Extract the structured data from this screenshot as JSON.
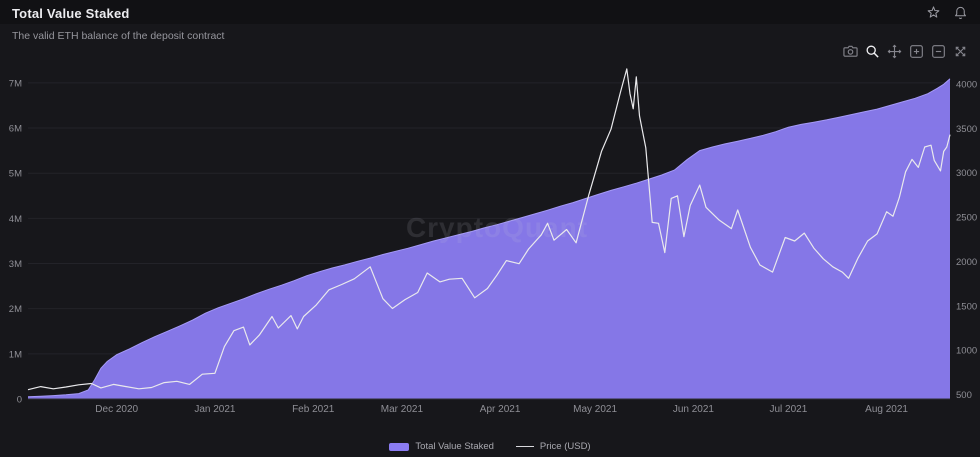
{
  "header": {
    "title": "Total Value Staked",
    "subtitle": "The valid ETH balance of the deposit contract"
  },
  "header_icons": [
    "star-icon",
    "bell-icon"
  ],
  "modebar": {
    "icons": [
      "camera-icon",
      "zoom-icon",
      "pan-icon",
      "zoom-in-icon",
      "zoom-out-icon",
      "autoscale-icon"
    ],
    "active": "zoom-icon"
  },
  "watermark": "CryptoQuant",
  "colors": {
    "background": "#17171b",
    "topbar": "#111114",
    "area": "#8b7cf2",
    "price_line": "#e9e9ec",
    "grid": "#232329",
    "tick_text": "#8f8f96",
    "title_text": "#ececf0",
    "subtitle_text": "#96969d"
  },
  "chart_data": {
    "type": "area",
    "title": "Total Value Staked",
    "subtitle": "The valid ETH balance of the deposit contract",
    "grid": "horizontal",
    "legend_position": "bottom-center",
    "x_range": [
      "2020-11-03",
      "2021-08-21"
    ],
    "x_ticks": [
      {
        "label": "Dec 2020",
        "date": "2020-12-01"
      },
      {
        "label": "Jan 2021",
        "date": "2021-01-01"
      },
      {
        "label": "Feb 2021",
        "date": "2021-02-01"
      },
      {
        "label": "Mar 2021",
        "date": "2021-03-01"
      },
      {
        "label": "Apr 2021",
        "date": "2021-04-01"
      },
      {
        "label": "May 2021",
        "date": "2021-05-01"
      },
      {
        "label": "Jun 2021",
        "date": "2021-06-01"
      },
      {
        "label": "Jul 2021",
        "date": "2021-07-01"
      },
      {
        "label": "Aug 2021",
        "date": "2021-08-01"
      }
    ],
    "y_left": {
      "name": "Total Value Staked (ETH)",
      "range": [
        0,
        7330000
      ],
      "tick_values": [
        0,
        1000000,
        2000000,
        3000000,
        4000000,
        5000000,
        6000000,
        7000000
      ],
      "tick_labels": [
        "0",
        "1M",
        "2M",
        "3M",
        "4M",
        "5M",
        "6M",
        "7M"
      ]
    },
    "y_right": {
      "name": "Price (USD)",
      "range": [
        450,
        4180
      ],
      "tick_values": [
        500,
        1000,
        1500,
        2000,
        2500,
        3000,
        3500,
        4000
      ],
      "tick_labels": [
        "500",
        "1000",
        "1500",
        "2000",
        "2500",
        "3000",
        "3500",
        "4000"
      ]
    },
    "series": [
      {
        "name": "Total Value Staked",
        "type": "area",
        "axis": "left",
        "color": "#8b7cf2",
        "points": [
          [
            "2020-11-03",
            48000
          ],
          [
            "2020-11-07",
            60000
          ],
          [
            "2020-11-11",
            75000
          ],
          [
            "2020-11-15",
            92000
          ],
          [
            "2020-11-19",
            120000
          ],
          [
            "2020-11-22",
            200000
          ],
          [
            "2020-11-24",
            420000
          ],
          [
            "2020-11-26",
            680000
          ],
          [
            "2020-11-28",
            830000
          ],
          [
            "2020-12-01",
            980000
          ],
          [
            "2020-12-05",
            1110000
          ],
          [
            "2020-12-09",
            1250000
          ],
          [
            "2020-12-13",
            1380000
          ],
          [
            "2020-12-17",
            1500000
          ],
          [
            "2020-12-21",
            1620000
          ],
          [
            "2020-12-25",
            1750000
          ],
          [
            "2020-12-29",
            1900000
          ],
          [
            "2021-01-02",
            2020000
          ],
          [
            "2021-01-06",
            2120000
          ],
          [
            "2021-01-10",
            2220000
          ],
          [
            "2021-01-14",
            2330000
          ],
          [
            "2021-01-18",
            2430000
          ],
          [
            "2021-01-22",
            2520000
          ],
          [
            "2021-01-26",
            2620000
          ],
          [
            "2021-01-30",
            2730000
          ],
          [
            "2021-02-03",
            2820000
          ],
          [
            "2021-02-07",
            2900000
          ],
          [
            "2021-02-11",
            2970000
          ],
          [
            "2021-02-15",
            3050000
          ],
          [
            "2021-02-19",
            3120000
          ],
          [
            "2021-02-23",
            3200000
          ],
          [
            "2021-02-27",
            3270000
          ],
          [
            "2021-03-03",
            3340000
          ],
          [
            "2021-03-07",
            3420000
          ],
          [
            "2021-03-11",
            3500000
          ],
          [
            "2021-03-15",
            3570000
          ],
          [
            "2021-03-19",
            3640000
          ],
          [
            "2021-03-23",
            3710000
          ],
          [
            "2021-03-27",
            3790000
          ],
          [
            "2021-03-31",
            3860000
          ],
          [
            "2021-04-04",
            3940000
          ],
          [
            "2021-04-08",
            4020000
          ],
          [
            "2021-04-12",
            4100000
          ],
          [
            "2021-04-16",
            4180000
          ],
          [
            "2021-04-20",
            4270000
          ],
          [
            "2021-04-24",
            4350000
          ],
          [
            "2021-04-28",
            4440000
          ],
          [
            "2021-05-02",
            4530000
          ],
          [
            "2021-05-06",
            4620000
          ],
          [
            "2021-05-10",
            4700000
          ],
          [
            "2021-05-14",
            4780000
          ],
          [
            "2021-05-18",
            4870000
          ],
          [
            "2021-05-22",
            4960000
          ],
          [
            "2021-05-26",
            5070000
          ],
          [
            "2021-05-30",
            5300000
          ],
          [
            "2021-06-03",
            5500000
          ],
          [
            "2021-06-07",
            5580000
          ],
          [
            "2021-06-11",
            5650000
          ],
          [
            "2021-06-15",
            5710000
          ],
          [
            "2021-06-19",
            5770000
          ],
          [
            "2021-06-23",
            5840000
          ],
          [
            "2021-06-27",
            5920000
          ],
          [
            "2021-07-01",
            6020000
          ],
          [
            "2021-07-05",
            6080000
          ],
          [
            "2021-07-09",
            6130000
          ],
          [
            "2021-07-13",
            6180000
          ],
          [
            "2021-07-17",
            6240000
          ],
          [
            "2021-07-21",
            6300000
          ],
          [
            "2021-07-25",
            6360000
          ],
          [
            "2021-07-29",
            6420000
          ],
          [
            "2021-08-02",
            6500000
          ],
          [
            "2021-08-06",
            6580000
          ],
          [
            "2021-08-10",
            6660000
          ],
          [
            "2021-08-14",
            6760000
          ],
          [
            "2021-08-17",
            6880000
          ],
          [
            "2021-08-19",
            6970000
          ],
          [
            "2021-08-21",
            7090000
          ]
        ]
      },
      {
        "name": "Price (USD)",
        "type": "line",
        "axis": "right",
        "color": "#e9e9ec",
        "points": [
          [
            "2020-11-03",
            555
          ],
          [
            "2020-11-07",
            590
          ],
          [
            "2020-11-11",
            565
          ],
          [
            "2020-11-15",
            585
          ],
          [
            "2020-11-19",
            610
          ],
          [
            "2020-11-23",
            625
          ],
          [
            "2020-11-26",
            575
          ],
          [
            "2020-11-30",
            615
          ],
          [
            "2020-12-04",
            590
          ],
          [
            "2020-12-08",
            565
          ],
          [
            "2020-12-12",
            580
          ],
          [
            "2020-12-16",
            635
          ],
          [
            "2020-12-20",
            650
          ],
          [
            "2020-12-24",
            615
          ],
          [
            "2020-12-28",
            730
          ],
          [
            "2021-01-01",
            740
          ],
          [
            "2021-01-04",
            1040
          ],
          [
            "2021-01-07",
            1220
          ],
          [
            "2021-01-10",
            1260
          ],
          [
            "2021-01-12",
            1060
          ],
          [
            "2021-01-15",
            1170
          ],
          [
            "2021-01-19",
            1380
          ],
          [
            "2021-01-21",
            1250
          ],
          [
            "2021-01-25",
            1390
          ],
          [
            "2021-01-27",
            1240
          ],
          [
            "2021-01-29",
            1380
          ],
          [
            "2021-02-02",
            1510
          ],
          [
            "2021-02-06",
            1680
          ],
          [
            "2021-02-10",
            1740
          ],
          [
            "2021-02-14",
            1805
          ],
          [
            "2021-02-19",
            1940
          ],
          [
            "2021-02-23",
            1580
          ],
          [
            "2021-02-26",
            1470
          ],
          [
            "2021-03-02",
            1570
          ],
          [
            "2021-03-06",
            1650
          ],
          [
            "2021-03-09",
            1870
          ],
          [
            "2021-03-13",
            1770
          ],
          [
            "2021-03-16",
            1800
          ],
          [
            "2021-03-20",
            1810
          ],
          [
            "2021-03-24",
            1590
          ],
          [
            "2021-03-28",
            1695
          ],
          [
            "2021-03-31",
            1845
          ],
          [
            "2021-04-03",
            2010
          ],
          [
            "2021-04-07",
            1975
          ],
          [
            "2021-04-10",
            2140
          ],
          [
            "2021-04-14",
            2300
          ],
          [
            "2021-04-16",
            2430
          ],
          [
            "2021-04-18",
            2240
          ],
          [
            "2021-04-22",
            2360
          ],
          [
            "2021-04-25",
            2210
          ],
          [
            "2021-04-29",
            2750
          ],
          [
            "2021-05-03",
            3240
          ],
          [
            "2021-05-06",
            3490
          ],
          [
            "2021-05-09",
            3910
          ],
          [
            "2021-05-11",
            4170
          ],
          [
            "2021-05-12",
            3890
          ],
          [
            "2021-05-13",
            3720
          ],
          [
            "2021-05-14",
            4080
          ],
          [
            "2021-05-15",
            3640
          ],
          [
            "2021-05-17",
            3280
          ],
          [
            "2021-05-19",
            2440
          ],
          [
            "2021-05-21",
            2430
          ],
          [
            "2021-05-23",
            2100
          ],
          [
            "2021-05-25",
            2710
          ],
          [
            "2021-05-27",
            2740
          ],
          [
            "2021-05-29",
            2280
          ],
          [
            "2021-05-31",
            2630
          ],
          [
            "2021-06-03",
            2860
          ],
          [
            "2021-06-05",
            2610
          ],
          [
            "2021-06-09",
            2470
          ],
          [
            "2021-06-13",
            2370
          ],
          [
            "2021-06-15",
            2580
          ],
          [
            "2021-06-19",
            2160
          ],
          [
            "2021-06-22",
            1960
          ],
          [
            "2021-06-26",
            1880
          ],
          [
            "2021-06-30",
            2270
          ],
          [
            "2021-07-03",
            2230
          ],
          [
            "2021-07-06",
            2320
          ],
          [
            "2021-07-09",
            2150
          ],
          [
            "2021-07-12",
            2030
          ],
          [
            "2021-07-15",
            1940
          ],
          [
            "2021-07-18",
            1880
          ],
          [
            "2021-07-20",
            1810
          ],
          [
            "2021-07-23",
            2040
          ],
          [
            "2021-07-26",
            2230
          ],
          [
            "2021-07-29",
            2310
          ],
          [
            "2021-08-01",
            2560
          ],
          [
            "2021-08-03",
            2510
          ],
          [
            "2021-08-05",
            2720
          ],
          [
            "2021-08-07",
            3010
          ],
          [
            "2021-08-09",
            3150
          ],
          [
            "2021-08-11",
            3060
          ],
          [
            "2021-08-13",
            3290
          ],
          [
            "2021-08-15",
            3310
          ],
          [
            "2021-08-16",
            3140
          ],
          [
            "2021-08-18",
            3020
          ],
          [
            "2021-08-19",
            3240
          ],
          [
            "2021-08-20",
            3290
          ],
          [
            "2021-08-21",
            3430
          ]
        ]
      }
    ]
  }
}
